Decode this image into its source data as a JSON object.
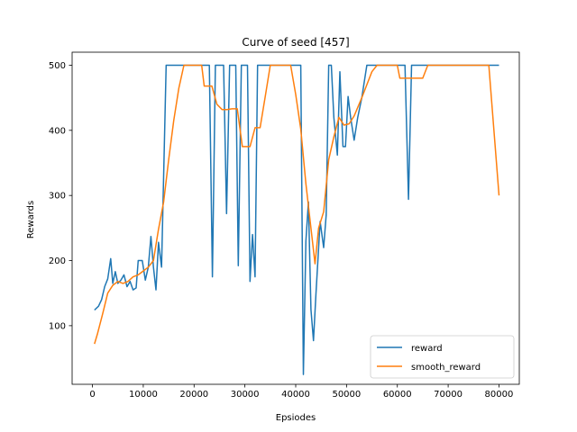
{
  "chart_data": {
    "type": "line",
    "title": "Curve of seed [457]",
    "xlabel": "Epsiodes",
    "ylabel": "Rewards",
    "xlim": [
      -4000,
      84000
    ],
    "ylim": [
      10,
      520
    ],
    "xticks": [
      0,
      10000,
      20000,
      30000,
      40000,
      50000,
      60000,
      70000,
      80000
    ],
    "yticks": [
      100,
      200,
      300,
      400,
      500
    ],
    "grid": false,
    "legend_position": "lower right",
    "series": [
      {
        "name": "reward",
        "color": "#1f77b4",
        "points": [
          [
            400,
            124
          ],
          [
            1200,
            130
          ],
          [
            1800,
            140
          ],
          [
            2400,
            160
          ],
          [
            3000,
            172
          ],
          [
            3600,
            203
          ],
          [
            4000,
            165
          ],
          [
            4500,
            183
          ],
          [
            5000,
            165
          ],
          [
            5600,
            170
          ],
          [
            6200,
            178
          ],
          [
            6800,
            160
          ],
          [
            7400,
            168
          ],
          [
            8000,
            155
          ],
          [
            8600,
            158
          ],
          [
            9000,
            200
          ],
          [
            9800,
            200
          ],
          [
            10400,
            170
          ],
          [
            11000,
            190
          ],
          [
            11500,
            237
          ],
          [
            12000,
            190
          ],
          [
            12500,
            155
          ],
          [
            13000,
            228
          ],
          [
            13600,
            190
          ],
          [
            14500,
            500
          ],
          [
            16000,
            500
          ],
          [
            18000,
            500
          ],
          [
            20000,
            500
          ],
          [
            22000,
            500
          ],
          [
            23000,
            500
          ],
          [
            23600,
            175
          ],
          [
            24200,
            500
          ],
          [
            25800,
            500
          ],
          [
            26400,
            272
          ],
          [
            27000,
            500
          ],
          [
            28200,
            500
          ],
          [
            28700,
            192
          ],
          [
            29300,
            500
          ],
          [
            30000,
            500
          ],
          [
            30500,
            500
          ],
          [
            31000,
            168
          ],
          [
            31500,
            240
          ],
          [
            32000,
            175
          ],
          [
            32500,
            500
          ],
          [
            35000,
            500
          ],
          [
            40000,
            500
          ],
          [
            41000,
            500
          ],
          [
            41500,
            25
          ],
          [
            42000,
            230
          ],
          [
            42500,
            290
          ],
          [
            43000,
            125
          ],
          [
            43500,
            77
          ],
          [
            44000,
            150
          ],
          [
            44800,
            260
          ],
          [
            45500,
            220
          ],
          [
            46000,
            270
          ],
          [
            46500,
            500
          ],
          [
            47000,
            500
          ],
          [
            47500,
            420
          ],
          [
            48200,
            362
          ],
          [
            48700,
            490
          ],
          [
            49300,
            375
          ],
          [
            49800,
            375
          ],
          [
            50300,
            452
          ],
          [
            50800,
            420
          ],
          [
            51500,
            385
          ],
          [
            52200,
            420
          ],
          [
            53000,
            450
          ],
          [
            54000,
            500
          ],
          [
            56000,
            500
          ],
          [
            60000,
            500
          ],
          [
            61500,
            500
          ],
          [
            62200,
            294
          ],
          [
            62800,
            500
          ],
          [
            65000,
            500
          ],
          [
            70000,
            500
          ],
          [
            75000,
            500
          ],
          [
            80000,
            500
          ]
        ]
      },
      {
        "name": "smooth_reward",
        "color": "#ff7f0e",
        "points": [
          [
            400,
            72
          ],
          [
            1000,
            88
          ],
          [
            2000,
            118
          ],
          [
            3000,
            150
          ],
          [
            4000,
            162
          ],
          [
            5000,
            168
          ],
          [
            6000,
            165
          ],
          [
            7000,
            168
          ],
          [
            8000,
            175
          ],
          [
            9000,
            178
          ],
          [
            10000,
            184
          ],
          [
            11000,
            190
          ],
          [
            12000,
            200
          ],
          [
            13000,
            248
          ],
          [
            14000,
            290
          ],
          [
            15000,
            355
          ],
          [
            16000,
            415
          ],
          [
            17000,
            465
          ],
          [
            18000,
            500
          ],
          [
            20000,
            500
          ],
          [
            21500,
            500
          ],
          [
            22000,
            468
          ],
          [
            23500,
            468
          ],
          [
            24500,
            440
          ],
          [
            25500,
            432
          ],
          [
            26500,
            432
          ],
          [
            27500,
            433
          ],
          [
            28500,
            433
          ],
          [
            29500,
            375
          ],
          [
            31000,
            375
          ],
          [
            32000,
            404
          ],
          [
            33000,
            404
          ],
          [
            34000,
            452
          ],
          [
            35000,
            500
          ],
          [
            39000,
            500
          ],
          [
            40000,
            455
          ],
          [
            41000,
            402
          ],
          [
            42000,
            318
          ],
          [
            43000,
            250
          ],
          [
            43800,
            195
          ],
          [
            44500,
            250
          ],
          [
            45500,
            275
          ],
          [
            46500,
            355
          ],
          [
            47500,
            390
          ],
          [
            48500,
            420
          ],
          [
            49500,
            408
          ],
          [
            50500,
            410
          ],
          [
            51500,
            422
          ],
          [
            53000,
            450
          ],
          [
            55000,
            490
          ],
          [
            56000,
            500
          ],
          [
            60000,
            500
          ],
          [
            60500,
            480
          ],
          [
            65000,
            480
          ],
          [
            66000,
            500
          ],
          [
            78000,
            500
          ],
          [
            80000,
            300
          ]
        ]
      }
    ]
  }
}
